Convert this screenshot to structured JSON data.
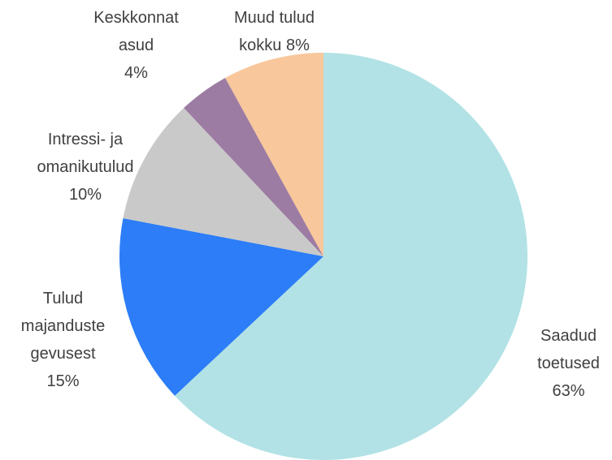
{
  "chart_data": {
    "type": "pie",
    "categories": [
      "Saadud toetused",
      "Tulud majanduste gevusest",
      "Intressi- ja omanikutulud",
      "Keskkonnat asud",
      "Muud tulud kokku"
    ],
    "values": [
      63,
      15,
      10,
      4,
      8
    ],
    "value_labels": [
      "63%",
      "15%",
      "10%",
      "4%",
      "8%"
    ],
    "colors": [
      "#b2e2e5",
      "#2c7df7",
      "#c9c9c9",
      "#9d7ca3",
      "#f8c79b"
    ]
  }
}
